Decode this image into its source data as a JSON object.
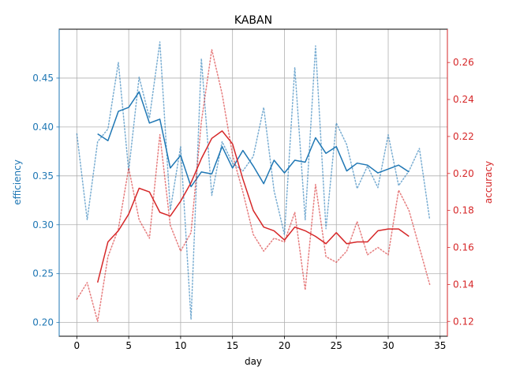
{
  "chart_data": {
    "type": "line",
    "title": "KABAN",
    "xlabel": "day",
    "ylabel_left": "efficiency",
    "ylabel_right": "accuracy",
    "xlim": [
      -1.7,
      35.7
    ],
    "ylim_left": [
      0.186,
      0.5
    ],
    "ylim_right": [
      0.112,
      0.278
    ],
    "x_ticks": [
      0,
      5,
      10,
      15,
      20,
      25,
      30,
      35
    ],
    "y_ticks_left": [
      0.2,
      0.25,
      0.3,
      0.35,
      0.4,
      0.45
    ],
    "y_ticks_right": [
      0.12,
      0.14,
      0.16,
      0.18,
      0.2,
      0.22,
      0.24,
      0.26
    ],
    "grid": true,
    "legend": "none",
    "colors": {
      "efficiency": "#1f77b4",
      "accuracy": "#d62728"
    },
    "series": [
      {
        "axis": "left",
        "style": "dotted",
        "x": [
          0,
          1,
          2,
          3,
          4,
          5,
          6,
          7,
          8,
          9,
          10,
          11,
          12,
          13,
          14,
          15,
          16,
          17,
          18,
          19,
          20,
          21,
          22,
          23,
          24,
          25,
          26,
          27,
          28,
          29,
          30,
          31,
          32,
          33,
          34
        ],
        "values": [
          0.393,
          0.305,
          0.385,
          0.398,
          0.466,
          0.355,
          0.451,
          0.409,
          0.487,
          0.315,
          0.38,
          0.203,
          0.47,
          0.33,
          0.385,
          0.363,
          0.355,
          0.37,
          0.42,
          0.335,
          0.29,
          0.461,
          0.305,
          0.483,
          0.296,
          0.404,
          0.382,
          0.337,
          0.36,
          0.338,
          0.392,
          0.34,
          0.355,
          0.378,
          0.305
        ]
      },
      {
        "axis": "left",
        "style": "solid",
        "x": [
          2,
          3,
          4,
          5,
          6,
          7,
          8,
          9,
          10,
          11,
          12,
          13,
          14,
          15,
          16,
          17,
          18,
          19,
          20,
          21,
          22,
          23,
          24,
          25,
          26,
          27,
          28,
          29,
          30,
          31,
          32
        ],
        "values": [
          0.393,
          0.386,
          0.416,
          0.42,
          0.436,
          0.404,
          0.408,
          0.358,
          0.371,
          0.339,
          0.354,
          0.352,
          0.38,
          0.358,
          0.376,
          0.36,
          0.342,
          0.366,
          0.353,
          0.366,
          0.364,
          0.389,
          0.373,
          0.38,
          0.355,
          0.363,
          0.361,
          0.353,
          0.357,
          0.361,
          0.354
        ]
      },
      {
        "axis": "right",
        "style": "dotted",
        "x": [
          0,
          1,
          2,
          3,
          4,
          5,
          6,
          7,
          8,
          9,
          10,
          11,
          12,
          13,
          14,
          15,
          16,
          17,
          18,
          19,
          20,
          21,
          22,
          23,
          24,
          25,
          26,
          27,
          28,
          29,
          30,
          31,
          32,
          33,
          34
        ],
        "values": [
          0.132,
          0.141,
          0.12,
          0.155,
          0.17,
          0.203,
          0.175,
          0.165,
          0.221,
          0.172,
          0.158,
          0.168,
          0.228,
          0.267,
          0.243,
          0.21,
          0.19,
          0.167,
          0.158,
          0.165,
          0.163,
          0.179,
          0.137,
          0.194,
          0.155,
          0.152,
          0.158,
          0.174,
          0.156,
          0.16,
          0.156,
          0.191,
          0.18,
          0.16,
          0.14
        ]
      },
      {
        "axis": "right",
        "style": "solid",
        "x": [
          2,
          3,
          4,
          5,
          6,
          7,
          8,
          9,
          10,
          11,
          12,
          13,
          14,
          15,
          16,
          17,
          18,
          19,
          20,
          21,
          22,
          23,
          24,
          25,
          26,
          27,
          28,
          29,
          30,
          31,
          32
        ],
        "values": [
          0.141,
          0.163,
          0.169,
          0.178,
          0.192,
          0.19,
          0.179,
          0.177,
          0.185,
          0.195,
          0.208,
          0.219,
          0.223,
          0.216,
          0.197,
          0.18,
          0.171,
          0.169,
          0.164,
          0.171,
          0.169,
          0.166,
          0.162,
          0.168,
          0.162,
          0.163,
          0.163,
          0.169,
          0.17,
          0.17,
          0.166
        ]
      }
    ]
  }
}
